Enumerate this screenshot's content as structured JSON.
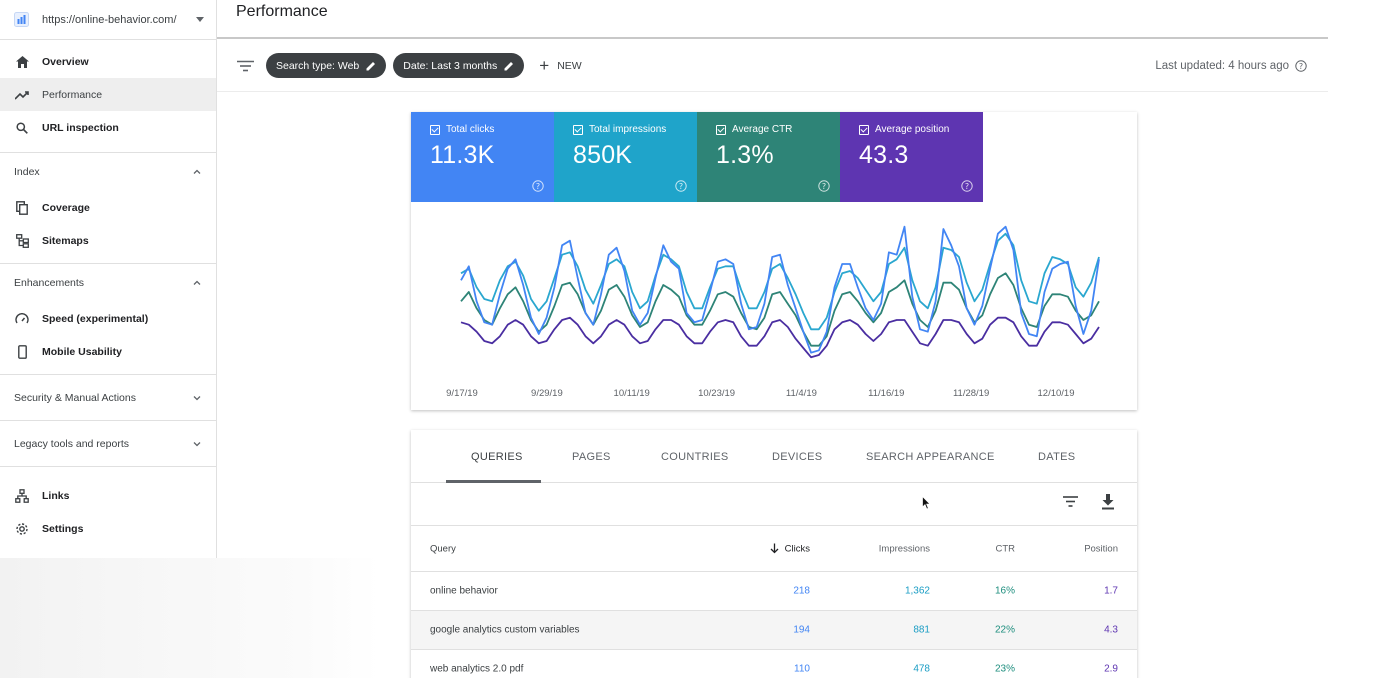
{
  "property": {
    "url": "https://online-behavior.com/"
  },
  "header": {
    "title": "Performance"
  },
  "sidebar": {
    "top_items": [
      {
        "label": "Overview",
        "icon": "home-icon"
      },
      {
        "label": "Performance",
        "icon": "trending-up-icon"
      },
      {
        "label": "URL inspection",
        "icon": "search-icon"
      }
    ],
    "index": {
      "label": "Index",
      "items": [
        {
          "label": "Coverage"
        },
        {
          "label": "Sitemaps"
        }
      ]
    },
    "enhancements": {
      "label": "Enhancements",
      "items": [
        {
          "label": "Speed (experimental)"
        },
        {
          "label": "Mobile Usability"
        }
      ]
    },
    "security": {
      "label": "Security & Manual Actions"
    },
    "legacy": {
      "label": "Legacy tools and reports"
    },
    "bottom_items": [
      {
        "label": "Links"
      },
      {
        "label": "Settings"
      }
    ]
  },
  "toolbar": {
    "chips": [
      {
        "label": "Search type: Web"
      },
      {
        "label": "Date: Last 3 months"
      }
    ],
    "new_label": "NEW",
    "last_updated": "Last updated: 4 hours ago"
  },
  "metrics": [
    {
      "label": "Total clicks",
      "value": "11.3K",
      "color": "#4285f4"
    },
    {
      "label": "Total impressions",
      "value": "850K",
      "color": "#1fa4ca"
    },
    {
      "label": "Average CTR",
      "value": "1.3%",
      "color": "#2e8477"
    },
    {
      "label": "Average position",
      "value": "43.3",
      "color": "#5e35b1"
    }
  ],
  "chart_data": {
    "type": "line",
    "x_tick_labels": [
      "9/17/19",
      "9/29/19",
      "10/11/19",
      "10/23/19",
      "11/4/19",
      "11/16/19",
      "11/28/19",
      "12/10/19"
    ],
    "series": [
      {
        "name": "Total clicks",
        "color": "#4285f4",
        "values": [
          5.5,
          6.1,
          4.6,
          3.7,
          3.6,
          4.9,
          6.0,
          6.4,
          5.3,
          3.9,
          3.2,
          3.9,
          5.2,
          7.0,
          7.2,
          5.6,
          4.1,
          3.6,
          4.9,
          6.6,
          6.9,
          5.9,
          4.2,
          3.6,
          4.1,
          5.6,
          7.0,
          6.3,
          6.0,
          4.1,
          3.7,
          3.8,
          5.0,
          6.3,
          6.4,
          6.2,
          4.5,
          3.4,
          3.5,
          4.5,
          6.5,
          6.6,
          5.3,
          4.3,
          3.3,
          2.4,
          2.5,
          3.3,
          5.2,
          6.2,
          6.2,
          5.2,
          4.3,
          3.8,
          4.5,
          6.7,
          6.6,
          7.8,
          4.8,
          3.4,
          3.3,
          4.6,
          7.7,
          7.0,
          6.1,
          4.3,
          3.6,
          4.4,
          6.0,
          7.5,
          7.8,
          6.8,
          4.1,
          3.2,
          3.1,
          5.0,
          6.0,
          6.2,
          6.3,
          4.4,
          3.2,
          4.2,
          6.4
        ]
      },
      {
        "name": "Total impressions",
        "color": "#2aa7cf",
        "values": [
          5.8,
          6.0,
          5.2,
          4.7,
          4.6,
          5.5,
          6.1,
          6.3,
          5.7,
          4.7,
          4.2,
          4.6,
          5.6,
          6.6,
          6.7,
          6.1,
          5.1,
          4.5,
          5.3,
          6.2,
          6.4,
          6.1,
          5.0,
          4.3,
          4.6,
          5.7,
          6.6,
          6.4,
          6.1,
          5.0,
          4.3,
          4.3,
          5.2,
          6.0,
          6.1,
          6.1,
          5.1,
          4.3,
          4.3,
          5.0,
          6.0,
          6.2,
          5.6,
          4.9,
          4.1,
          3.4,
          3.4,
          3.9,
          5.0,
          5.8,
          5.9,
          5.6,
          5.1,
          4.6,
          5.0,
          6.2,
          6.4,
          6.9,
          5.5,
          4.6,
          4.3,
          5.2,
          6.9,
          6.8,
          6.5,
          5.4,
          4.6,
          5.1,
          6.2,
          7.2,
          7.5,
          7.0,
          5.5,
          4.6,
          4.5,
          5.8,
          6.5,
          6.4,
          6.2,
          5.2,
          4.8,
          5.4,
          6.5
        ]
      },
      {
        "name": "Average CTR",
        "color": "#2e8477",
        "values": [
          4.6,
          5.0,
          4.3,
          3.8,
          3.6,
          4.3,
          4.9,
          5.2,
          4.6,
          3.8,
          3.3,
          3.6,
          4.4,
          5.3,
          5.4,
          4.9,
          4.1,
          3.6,
          4.2,
          5.1,
          5.3,
          4.8,
          4.0,
          3.5,
          3.7,
          4.6,
          5.3,
          5.1,
          4.8,
          4.0,
          3.6,
          3.6,
          4.2,
          4.9,
          5.0,
          4.8,
          4.1,
          3.5,
          3.4,
          3.9,
          4.9,
          5.0,
          4.5,
          4.0,
          3.3,
          2.7,
          2.7,
          3.1,
          4.2,
          4.9,
          5.0,
          4.6,
          4.1,
          3.7,
          4.1,
          5.0,
          5.2,
          5.5,
          4.5,
          3.8,
          3.5,
          4.2,
          5.4,
          5.4,
          5.1,
          4.3,
          3.7,
          4.0,
          4.9,
          5.6,
          5.8,
          5.3,
          4.3,
          3.6,
          3.5,
          4.4,
          4.9,
          4.9,
          4.8,
          4.2,
          3.8,
          4.0,
          4.6
        ]
      },
      {
        "name": "Average position",
        "color": "#4a2ea1",
        "values": [
          3.7,
          3.6,
          3.3,
          2.9,
          2.8,
          3.1,
          3.6,
          3.8,
          3.6,
          3.1,
          2.8,
          2.9,
          3.4,
          3.8,
          3.9,
          3.6,
          3.1,
          2.8,
          3.1,
          3.6,
          3.8,
          3.6,
          3.1,
          2.8,
          2.9,
          3.4,
          3.8,
          3.8,
          3.6,
          3.1,
          2.8,
          2.8,
          3.3,
          3.7,
          3.8,
          3.7,
          3.1,
          2.7,
          2.7,
          3.1,
          3.7,
          3.8,
          3.5,
          3.0,
          2.6,
          2.2,
          2.3,
          2.7,
          3.4,
          3.7,
          3.8,
          3.6,
          3.2,
          2.9,
          3.2,
          3.7,
          3.8,
          3.8,
          3.3,
          2.8,
          2.7,
          3.2,
          3.8,
          3.8,
          3.7,
          3.2,
          2.8,
          3.0,
          3.6,
          3.9,
          3.9,
          3.7,
          3.1,
          2.7,
          2.7,
          3.3,
          3.7,
          3.7,
          3.6,
          3.2,
          2.8,
          3.0,
          3.5
        ]
      }
    ],
    "grid": false
  },
  "table": {
    "tabs": [
      "QUERIES",
      "PAGES",
      "COUNTRIES",
      "DEVICES",
      "SEARCH APPEARANCE",
      "DATES"
    ],
    "active_tab": "QUERIES",
    "columns": [
      "Query",
      "Clicks",
      "Impressions",
      "CTR",
      "Position"
    ],
    "sort_column": "Clicks",
    "rows": [
      {
        "query": "online behavior",
        "clicks": "218",
        "impressions": "1,362",
        "ctr": "16%",
        "position": "1.7"
      },
      {
        "query": "google analytics custom variables",
        "clicks": "194",
        "impressions": "881",
        "ctr": "22%",
        "position": "4.3"
      },
      {
        "query": "web analytics 2.0 pdf",
        "clicks": "110",
        "impressions": "478",
        "ctr": "23%",
        "position": "2.9"
      }
    ]
  }
}
